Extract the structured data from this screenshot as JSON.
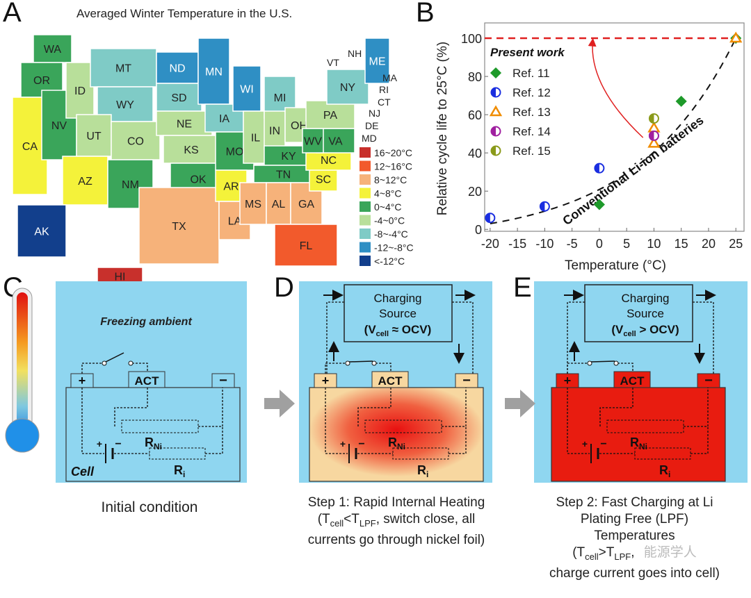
{
  "panels": {
    "a": "A",
    "b": "B",
    "c": "C",
    "d": "D",
    "e": "E"
  },
  "map": {
    "title": "Averaged Winter Temperature in the U.S.",
    "legend": [
      {
        "label": "16~20°C",
        "color": "#c8302c"
      },
      {
        "label": "12~16°C",
        "color": "#f25a2c"
      },
      {
        "label": "8~12°C",
        "color": "#f6b27a"
      },
      {
        "label": "4~8°C",
        "color": "#f4f23a"
      },
      {
        "label": "0~4°C",
        "color": "#3aa55a"
      },
      {
        "label": "-4~0°C",
        "color": "#b8df9a"
      },
      {
        "label": "-8~-4°C",
        "color": "#7fcbc6"
      },
      {
        "label": "-12~-8°C",
        "color": "#2f8fc4"
      },
      {
        "label": "<-12°C",
        "color": "#123f8c"
      }
    ],
    "states": [
      {
        "name": "WA",
        "cat": 4
      },
      {
        "name": "OR",
        "cat": 4
      },
      {
        "name": "CA",
        "cat": 3
      },
      {
        "name": "NV",
        "cat": 4
      },
      {
        "name": "ID",
        "cat": 5
      },
      {
        "name": "MT",
        "cat": 6
      },
      {
        "name": "WY",
        "cat": 6
      },
      {
        "name": "UT",
        "cat": 5
      },
      {
        "name": "AZ",
        "cat": 3
      },
      {
        "name": "CO",
        "cat": 5
      },
      {
        "name": "NM",
        "cat": 4
      },
      {
        "name": "ND",
        "cat": 7
      },
      {
        "name": "SD",
        "cat": 6
      },
      {
        "name": "NE",
        "cat": 5
      },
      {
        "name": "KS",
        "cat": 5
      },
      {
        "name": "OK",
        "cat": 4
      },
      {
        "name": "TX",
        "cat": 2
      },
      {
        "name": "MN",
        "cat": 7
      },
      {
        "name": "IA",
        "cat": 6
      },
      {
        "name": "MO",
        "cat": 4
      },
      {
        "name": "AR",
        "cat": 3
      },
      {
        "name": "LA",
        "cat": 2
      },
      {
        "name": "WI",
        "cat": 7
      },
      {
        "name": "IL",
        "cat": 5
      },
      {
        "name": "MI",
        "cat": 6
      },
      {
        "name": "IN",
        "cat": 5
      },
      {
        "name": "OH",
        "cat": 5
      },
      {
        "name": "KY",
        "cat": 4
      },
      {
        "name": "TN",
        "cat": 4
      },
      {
        "name": "MS",
        "cat": 2
      },
      {
        "name": "AL",
        "cat": 2
      },
      {
        "name": "GA",
        "cat": 2
      },
      {
        "name": "FL",
        "cat": 1
      },
      {
        "name": "SC",
        "cat": 3
      },
      {
        "name": "NC",
        "cat": 3
      },
      {
        "name": "VA",
        "cat": 4
      },
      {
        "name": "WV",
        "cat": 4
      },
      {
        "name": "PA",
        "cat": 5
      },
      {
        "name": "NY",
        "cat": 6
      },
      {
        "name": "ME",
        "cat": 7
      },
      {
        "name": "AK",
        "cat": 8
      },
      {
        "name": "HI",
        "cat": 0
      }
    ],
    "callouts": [
      "VT",
      "NH",
      "MA",
      "RI",
      "CT",
      "NJ",
      "DE",
      "MD"
    ]
  },
  "chart_data": {
    "type": "scatter",
    "xlabel": "Temperature (°C)",
    "ylabel": "Relative cycle life to 25°C (%)",
    "xlim": [
      -21,
      26.5
    ],
    "ylim": [
      -1,
      108
    ],
    "xticks": [
      -20,
      -15,
      -10,
      -5,
      0,
      5,
      10,
      15,
      20,
      25
    ],
    "yticks": [
      0,
      20,
      40,
      60,
      80,
      100
    ],
    "present_work": {
      "label": "Present work",
      "y": 100,
      "color": "#e02020"
    },
    "fit_label": "Conventional Li-ion batteries",
    "series": [
      {
        "name": "Ref. 11",
        "marker": "diamond",
        "color": "#1e9a2a",
        "points": [
          [
            0,
            13
          ],
          [
            15,
            67
          ],
          [
            25,
            100
          ]
        ]
      },
      {
        "name": "Ref. 12",
        "marker": "circle",
        "color": "#1a2ee0",
        "points": [
          [
            -20,
            6
          ],
          [
            -10,
            12
          ],
          [
            0,
            32
          ],
          [
            10,
            49
          ]
        ]
      },
      {
        "name": "Ref. 13",
        "marker": "triangle",
        "color": "#f08c00",
        "points": [
          [
            10,
            45
          ],
          [
            10,
            53
          ],
          [
            25,
            100
          ]
        ]
      },
      {
        "name": "Ref. 14",
        "marker": "circle",
        "color": "#a020a0",
        "points": [
          [
            10,
            49
          ]
        ]
      },
      {
        "name": "Ref. 15",
        "marker": "circle",
        "color": "#8a9a1a",
        "points": [
          [
            10,
            58
          ]
        ]
      }
    ],
    "legend_position": "top-left"
  },
  "diagram": {
    "freezing": "Freezing ambient",
    "plus": "+",
    "minus": "−",
    "act": "ACT",
    "r": "R",
    "ni": "Ni",
    "i": "i",
    "cell": "Cell",
    "source1": "Charging",
    "source2": "Source",
    "v": "(V",
    "vsub": "cell",
    "d_rel": " ≈ OCV)",
    "e_rel": " > OCV)"
  },
  "captions": {
    "c": "Initial condition",
    "d1": "Step 1: Rapid Internal Heating",
    "d2a": "(T",
    "d2b": "cell",
    "d2c": "<T",
    "d2d": "LPF",
    "d2e": ",  switch close, all",
    "d3": "currents go through nickel foil)",
    "e1": "Step 2: Fast Charging at Li",
    "e2": "Plating Free (LPF)",
    "e3": "Temperatures",
    "e4a": "(T",
    "e4b": "cell",
    "e4c": ">T",
    "e4d": "LPF",
    "e4e": ",",
    "e5": "charge current goes into cell)"
  },
  "watermark": "能源学人"
}
